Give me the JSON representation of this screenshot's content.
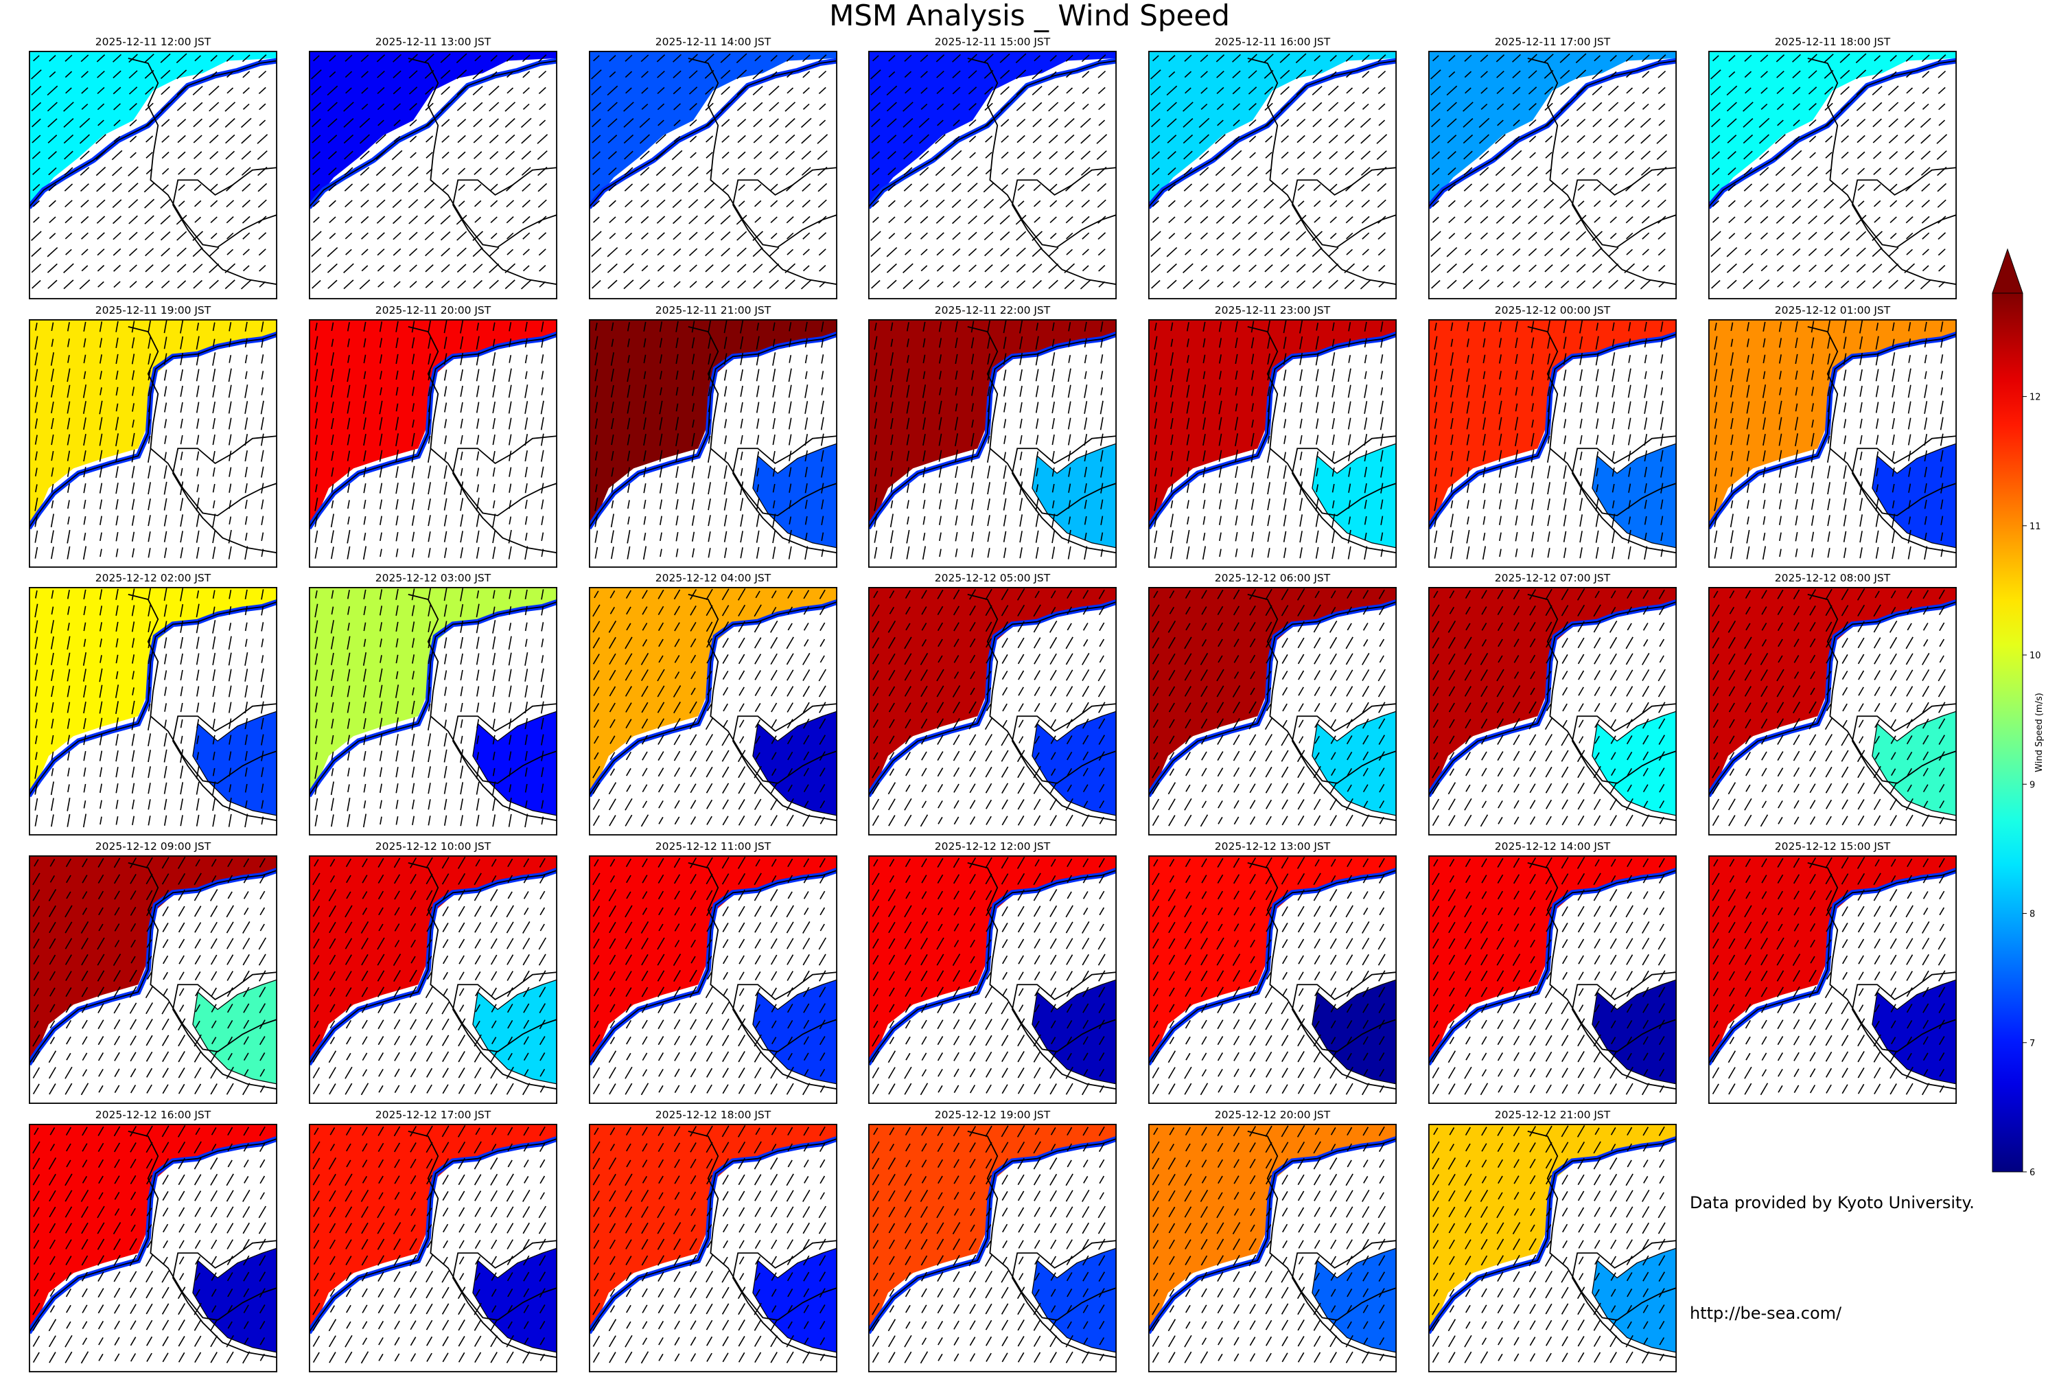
{
  "title": "MSM Analysis _ Wind Speed",
  "credit": "Data provided by Kyoto University.",
  "url": "http://be-sea.com/",
  "chart_data": {
    "type": "heatmap",
    "title": "MSM Analysis _ Wind Speed",
    "colorbar": {
      "label": "Wind Speed (m/s)",
      "min": 6,
      "max": 12.8,
      "ticks": [
        6,
        7,
        8,
        9,
        10,
        11,
        12
      ],
      "colormap": "jet",
      "extend": "max"
    },
    "panels": [
      {
        "time": "2025-12-11 12:00 JST",
        "sea_wind_speed": 8.5,
        "bay_wind_speed": null
      },
      {
        "time": "2025-12-11 13:00 JST",
        "sea_wind_speed": 6.8,
        "bay_wind_speed": null
      },
      {
        "time": "2025-12-11 14:00 JST",
        "sea_wind_speed": 7.4,
        "bay_wind_speed": null
      },
      {
        "time": "2025-12-11 15:00 JST",
        "sea_wind_speed": 7.0,
        "bay_wind_speed": null
      },
      {
        "time": "2025-12-11 16:00 JST",
        "sea_wind_speed": 8.3,
        "bay_wind_speed": null
      },
      {
        "time": "2025-12-11 17:00 JST",
        "sea_wind_speed": 7.9,
        "bay_wind_speed": null
      },
      {
        "time": "2025-12-11 18:00 JST",
        "sea_wind_speed": 8.6,
        "bay_wind_speed": null
      },
      {
        "time": "2025-12-11 19:00 JST",
        "sea_wind_speed": 10.4,
        "bay_wind_speed": null
      },
      {
        "time": "2025-12-11 20:00 JST",
        "sea_wind_speed": 12.0,
        "bay_wind_speed": null
      },
      {
        "time": "2025-12-11 21:00 JST",
        "sea_wind_speed": 12.8,
        "bay_wind_speed": 7.4
      },
      {
        "time": "2025-12-11 22:00 JST",
        "sea_wind_speed": 12.6,
        "bay_wind_speed": 8.1
      },
      {
        "time": "2025-12-11 23:00 JST",
        "sea_wind_speed": 12.3,
        "bay_wind_speed": 8.4
      },
      {
        "time": "2025-12-12 00:00 JST",
        "sea_wind_speed": 11.7,
        "bay_wind_speed": 7.6
      },
      {
        "time": "2025-12-12 01:00 JST",
        "sea_wind_speed": 11.0,
        "bay_wind_speed": 7.2
      },
      {
        "time": "2025-12-12 02:00 JST",
        "sea_wind_speed": 10.3,
        "bay_wind_speed": 7.3
      },
      {
        "time": "2025-12-12 03:00 JST",
        "sea_wind_speed": 9.8,
        "bay_wind_speed": 6.9
      },
      {
        "time": "2025-12-12 04:00 JST",
        "sea_wind_speed": 10.8,
        "bay_wind_speed": 6.5
      },
      {
        "time": "2025-12-12 05:00 JST",
        "sea_wind_speed": 12.4,
        "bay_wind_speed": 7.2
      },
      {
        "time": "2025-12-12 06:00 JST",
        "sea_wind_speed": 12.5,
        "bay_wind_speed": 8.3
      },
      {
        "time": "2025-12-12 07:00 JST",
        "sea_wind_speed": 12.4,
        "bay_wind_speed": 8.6
      },
      {
        "time": "2025-12-12 08:00 JST",
        "sea_wind_speed": 12.3,
        "bay_wind_speed": 8.9
      },
      {
        "time": "2025-12-12 09:00 JST",
        "sea_wind_speed": 12.5,
        "bay_wind_speed": 9.0
      },
      {
        "time": "2025-12-12 10:00 JST",
        "sea_wind_speed": 12.1,
        "bay_wind_speed": 8.3
      },
      {
        "time": "2025-12-12 11:00 JST",
        "sea_wind_speed": 12.0,
        "bay_wind_speed": 7.2
      },
      {
        "time": "2025-12-12 12:00 JST",
        "sea_wind_speed": 12.0,
        "bay_wind_speed": 6.4
      },
      {
        "time": "2025-12-12 13:00 JST",
        "sea_wind_speed": 11.9,
        "bay_wind_speed": 6.2
      },
      {
        "time": "2025-12-12 14:00 JST",
        "sea_wind_speed": 12.0,
        "bay_wind_speed": 6.3
      },
      {
        "time": "2025-12-12 15:00 JST",
        "sea_wind_speed": 12.1,
        "bay_wind_speed": 6.5
      },
      {
        "time": "2025-12-12 16:00 JST",
        "sea_wind_speed": 12.0,
        "bay_wind_speed": 6.5
      },
      {
        "time": "2025-12-12 17:00 JST",
        "sea_wind_speed": 11.8,
        "bay_wind_speed": 6.6
      },
      {
        "time": "2025-12-12 18:00 JST",
        "sea_wind_speed": 11.7,
        "bay_wind_speed": 7.0
      },
      {
        "time": "2025-12-12 19:00 JST",
        "sea_wind_speed": 11.5,
        "bay_wind_speed": 7.3
      },
      {
        "time": "2025-12-12 20:00 JST",
        "sea_wind_speed": 11.1,
        "bay_wind_speed": 7.5
      },
      {
        "time": "2025-12-12 21:00 JST",
        "sea_wind_speed": 10.6,
        "bay_wind_speed": 7.9
      }
    ]
  }
}
